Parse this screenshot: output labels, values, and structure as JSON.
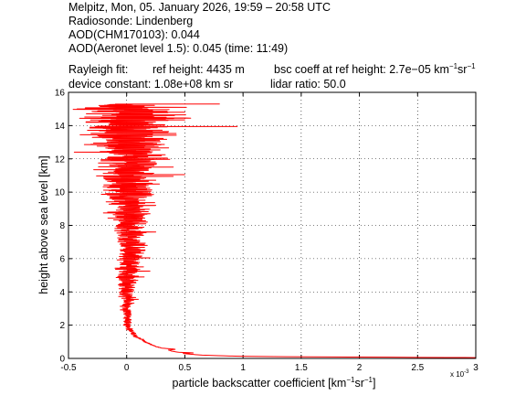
{
  "header": {
    "line1": "Melpitz, Mon, 05. January 2026, 19:59 – 20:58 UTC",
    "line2": "Radiosonde: Lindenberg",
    "line3": "AOD(CHM170103): 0.044",
    "line4": "AOD(Aeronet level 1.5): 0.045   (time: 11:49)",
    "rayleigh_label": "Rayleigh fit:",
    "ref_height": "ref height: 4435 m",
    "bsc_prefix": "bsc coeff at ref height: 2.7e−05 km",
    "bsc_exp1": "−1",
    "bsc_mid": "sr",
    "bsc_exp2": "−1",
    "device_constant": "device constant: 1.08e+08 km sr",
    "lidar_ratio": "lidar ratio: 50.0"
  },
  "chart_data": {
    "type": "line",
    "xlabel": "particle backscatter coefficient [km",
    "xlabel_exp1": "−1",
    "xlabel_mid": "sr",
    "xlabel_exp2": "−1",
    "xlabel_end": "]",
    "ylabel": "height above sea level [km]",
    "x_multiplier_label": "x 10",
    "x_multiplier_exp": "-3",
    "xlim": [
      -0.0005,
      0.003
    ],
    "ylim": [
      0,
      16
    ],
    "x_tick_labels": [
      "-0.5",
      "0",
      "0.5",
      "1",
      "1.5",
      "2",
      "2.5",
      "3"
    ],
    "y_tick_labels": [
      "0",
      "2",
      "4",
      "6",
      "8",
      "10",
      "12",
      "14",
      "16"
    ],
    "grid": true,
    "line_color": "#ff0000",
    "series": [
      {
        "profile": [
          [
            0.003,
            0.05
          ],
          [
            0.002,
            0.08
          ],
          [
            0.0014,
            0.1
          ],
          [
            0.001,
            0.13
          ],
          [
            0.0008,
            0.16
          ],
          [
            0.00065,
            0.2
          ],
          [
            0.00055,
            0.25
          ],
          [
            0.00048,
            0.3
          ],
          [
            0.00058,
            0.33
          ],
          [
            0.00045,
            0.37
          ],
          [
            0.0004,
            0.42
          ],
          [
            0.00036,
            0.5
          ],
          [
            0.00042,
            0.55
          ],
          [
            0.0003,
            0.62
          ],
          [
            0.00026,
            0.7
          ],
          [
            0.00022,
            0.8
          ],
          [
            0.00019,
            0.9
          ],
          [
            0.00016,
            1.0
          ],
          [
            0.00014,
            1.1
          ],
          [
            0.00011,
            1.2
          ],
          [
            8e-05,
            1.3
          ],
          [
            6e-05,
            1.45
          ],
          [
            4e-05,
            1.6
          ],
          [
            2e-05,
            1.8
          ],
          [
            1e-05,
            2.0
          ],
          [
            5e-06,
            2.3
          ],
          [
            1.2e-05,
            2.6
          ],
          [
            -5e-06,
            3.0
          ],
          [
            1e-05,
            3.5
          ],
          [
            3e-06,
            4.0
          ],
          [
            6e-06,
            4.435
          ],
          [
            1e-05,
            5.0
          ],
          [
            2e-05,
            5.5
          ],
          [
            1.5e-05,
            6.0
          ],
          [
            3e-05,
            6.5
          ],
          [
            2.5e-05,
            7.0
          ],
          [
            3.5e-05,
            7.5
          ],
          [
            2e-05,
            8.0
          ],
          [
            3e-05,
            8.5
          ],
          [
            2.5e-05,
            9.0
          ],
          [
            3e-05,
            9.5
          ],
          [
            2e-05,
            10.0
          ],
          [
            2e-05,
            10.5
          ],
          [
            3e-05,
            11.0
          ],
          [
            2e-05,
            11.5
          ],
          [
            4e-05,
            12.0
          ],
          [
            3e-05,
            12.5
          ],
          [
            3e-05,
            13.0
          ],
          [
            4e-05,
            13.5
          ],
          [
            3e-05,
            14.0
          ],
          [
            3e-05,
            14.5
          ],
          [
            2e-05,
            15.0
          ],
          [
            2e-05,
            15.3
          ]
        ],
        "noise_amplitude": [
          [
            0.0,
            0.0
          ],
          [
            1.0,
            1e-05
          ],
          [
            1.5,
            2e-05
          ],
          [
            2.5,
            3e-05
          ],
          [
            4.0,
            6e-05
          ],
          [
            6.0,
            0.0001
          ],
          [
            8.0,
            0.00013
          ],
          [
            10.0,
            0.00018
          ],
          [
            12.0,
            0.00025
          ],
          [
            14.0,
            0.00035
          ],
          [
            15.3,
            0.0004
          ]
        ],
        "spikes": [
          [
            13.95,
            0.00095
          ],
          [
            15.3,
            0.0008
          ],
          [
            14.45,
            0.00055
          ],
          [
            14.8,
            0.0005
          ],
          [
            11.05,
            0.0005
          ],
          [
            10.95,
            0.0004
          ],
          [
            11.5,
            0.0004
          ],
          [
            12.4,
            -0.00045
          ],
          [
            13.45,
            -0.0004
          ],
          [
            12.05,
            0.00035
          ],
          [
            14.2,
            -0.00035
          ],
          [
            7.6,
            0.00025
          ],
          [
            6.05,
            0.0002
          ],
          [
            4.9,
            0.00015
          ],
          [
            5.25,
            0.0002
          ],
          [
            9.2,
            0.00025
          ],
          [
            3.55,
            0.0001
          ],
          [
            8.75,
            -0.0002
          ]
        ]
      }
    ]
  }
}
